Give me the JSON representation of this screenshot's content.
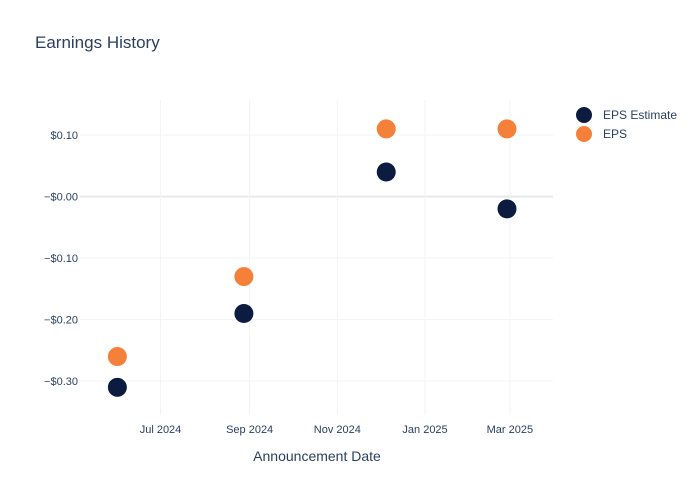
{
  "chart_data": {
    "type": "scatter",
    "title": "Earnings History",
    "xlabel": "Announcement Date",
    "ylabel": "",
    "x_range": [
      "2024-05-06",
      "2025-03-31"
    ],
    "y_range": [
      -0.355,
      0.157
    ],
    "x_ticks": [
      {
        "date": "2024-07-01",
        "label": "Jul 2024"
      },
      {
        "date": "2024-09-01",
        "label": "Sep 2024"
      },
      {
        "date": "2024-11-01",
        "label": "Nov 2024"
      },
      {
        "date": "2025-01-01",
        "label": "Jan 2025"
      },
      {
        "date": "2025-03-01",
        "label": "Mar 2025"
      }
    ],
    "y_ticks": [
      {
        "value": 0.1,
        "label": "$0.10"
      },
      {
        "value": 0.0,
        "label": "−$0.00"
      },
      {
        "value": -0.1,
        "label": "−$0.10"
      },
      {
        "value": -0.2,
        "label": "−$0.20"
      },
      {
        "value": -0.3,
        "label": "−$0.30"
      }
    ],
    "grid": true,
    "legend_position": "top-right",
    "series": [
      {
        "name": "EPS Estimate",
        "color": "#0c1c40",
        "points": [
          {
            "x": "2024-06-01",
            "y": -0.31
          },
          {
            "x": "2024-08-28",
            "y": -0.19
          },
          {
            "x": "2024-12-05",
            "y": 0.04
          },
          {
            "x": "2025-02-27",
            "y": -0.02
          }
        ]
      },
      {
        "name": "EPS",
        "color": "#f5803a",
        "points": [
          {
            "x": "2024-06-01",
            "y": -0.26
          },
          {
            "x": "2024-08-28",
            "y": -0.13
          },
          {
            "x": "2024-12-05",
            "y": 0.11
          },
          {
            "x": "2025-02-27",
            "y": 0.11
          }
        ]
      }
    ]
  }
}
